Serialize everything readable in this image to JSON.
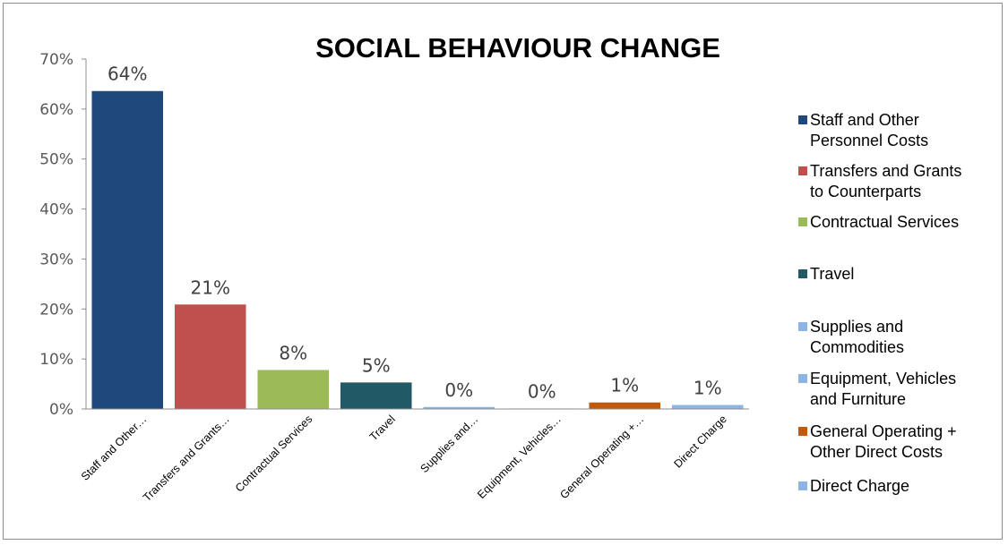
{
  "chart_data": {
    "type": "bar",
    "title": "SOCIAL BEHAVIOUR CHANGE",
    "categories": [
      "Staff and Other…",
      "Transfers and Grants…",
      "Contractual Services",
      "Travel",
      "Supplies and…",
      "Equipment, Vehicles…",
      "General Operating +…",
      "Direct Charge"
    ],
    "values": [
      63.6,
      20.9,
      7.8,
      5.3,
      0.4,
      0.1,
      1.3,
      0.8
    ],
    "data_labels": [
      "64%",
      "21%",
      "8%",
      "5%",
      "0%",
      "0%",
      "1%",
      "1%"
    ],
    "colors": [
      "#1f497d",
      "#c0504d",
      "#9bbb59",
      "#215967",
      "#8db4e2",
      "#8db4e2",
      "#c0590c",
      "#8db4e2"
    ],
    "ylim": [
      0,
      70
    ],
    "yticks": [
      0,
      10,
      20,
      30,
      40,
      50,
      60,
      70
    ],
    "ytick_labels": [
      "0%",
      "10%",
      "20%",
      "30%",
      "40%",
      "50%",
      "60%",
      "70%"
    ],
    "grid": false,
    "legend_position": "right",
    "legend": [
      {
        "lines": [
          "Staff and Other",
          "Personnel Costs"
        ],
        "color": "#1f497d"
      },
      {
        "lines": [
          "Transfers and Grants",
          "to Counterparts"
        ],
        "color": "#c0504d"
      },
      {
        "lines": [
          "Contractual Services"
        ],
        "color": "#9bbb59"
      },
      {
        "lines": [
          "Travel"
        ],
        "color": "#215967"
      },
      {
        "lines": [
          "Supplies and",
          "Commodities"
        ],
        "color": "#8db4e2"
      },
      {
        "lines": [
          "Equipment, Vehicles",
          "and Furniture"
        ],
        "color": "#8db4e2"
      },
      {
        "lines": [
          "General Operating +",
          "Other Direct Costs"
        ],
        "color": "#c0590c"
      },
      {
        "lines": [
          "Direct Charge"
        ],
        "color": "#8db4e2"
      }
    ]
  }
}
